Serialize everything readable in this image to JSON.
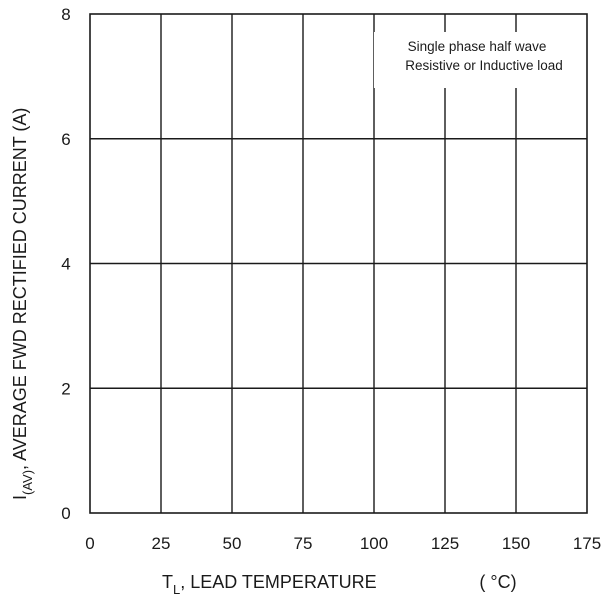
{
  "chart_data": {
    "type": "line",
    "title": "",
    "xlabel": {
      "main": "T",
      "sub": "L",
      "rest": ", LEAD TEMPERATURE",
      "unit": "( °C)"
    },
    "ylabel": {
      "main": "I",
      "sub": "(AV)",
      "rest": ", AVERAGE FWD RECTIFIED CURRENT (A)"
    },
    "x_ticks": [
      0,
      25,
      50,
      75,
      100,
      125,
      150,
      175
    ],
    "y_ticks": [
      0,
      2,
      4,
      6,
      8
    ],
    "xlim": [
      0,
      175
    ],
    "ylim": [
      0,
      8
    ],
    "grid": true,
    "annotation": {
      "lines": [
        "Single phase half wave",
        "Resistive or Inductive load"
      ],
      "placement": "top-right"
    },
    "series": []
  }
}
